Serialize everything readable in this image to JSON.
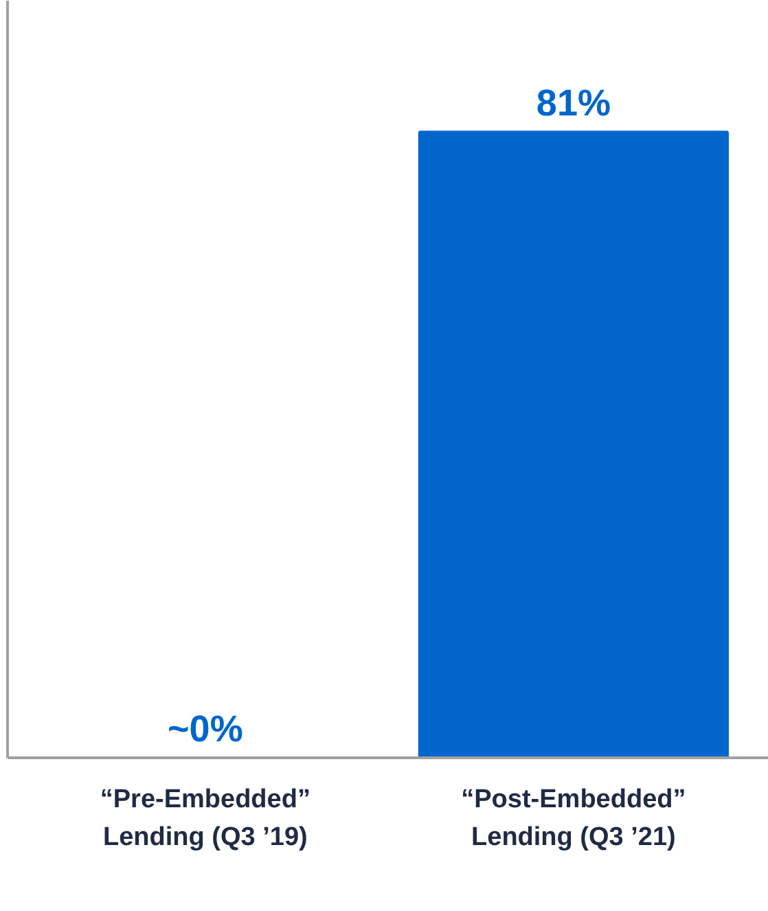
{
  "chart_data": {
    "type": "bar",
    "categories": [
      "“Pre-Embedded” Lending (Q3 ’19)",
      "“Post-Embedded” Lending (Q3 ’21)"
    ],
    "values": [
      0,
      81
    ],
    "value_labels": [
      "~0%",
      "81%"
    ],
    "color": "#0066cc",
    "ylim": [
      0,
      98
    ],
    "tick_labels": "x",
    "grid": false
  }
}
